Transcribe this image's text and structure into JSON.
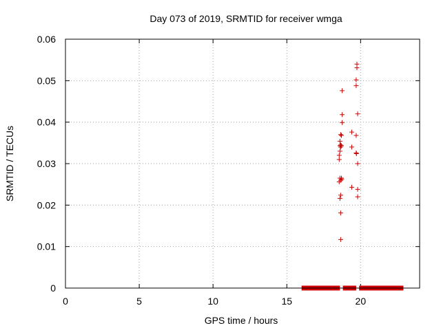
{
  "chart_data": {
    "type": "scatter",
    "title": "Day 073 of 2019, SRMTID for receiver wmga",
    "xlabel": "GPS time / hours",
    "ylabel": "SRMTID / TECUs",
    "xlim": [
      0,
      24
    ],
    "ylim": [
      0,
      0.06
    ],
    "x_ticks": [
      "0",
      "5",
      "10",
      "15",
      "20"
    ],
    "x_tick_values": [
      0,
      5,
      10,
      15,
      20
    ],
    "y_ticks": [
      "0",
      "0.01",
      "0.02",
      "0.03",
      "0.04",
      "0.05",
      "0.06"
    ],
    "y_tick_values": [
      0,
      0.01,
      0.02,
      0.03,
      0.04,
      0.05,
      0.06
    ],
    "grid": true,
    "marker": "plus",
    "color": "#cc0000",
    "baseline_segments": [
      [
        16.0,
        18.6
      ],
      [
        18.8,
        19.7
      ],
      [
        19.9,
        22.9
      ]
    ],
    "points": [
      [
        18.55,
        0.031
      ],
      [
        18.55,
        0.032
      ],
      [
        18.55,
        0.0256
      ],
      [
        18.6,
        0.0343
      ],
      [
        18.6,
        0.0354
      ],
      [
        18.6,
        0.033
      ],
      [
        18.6,
        0.0265
      ],
      [
        18.6,
        0.0216
      ],
      [
        18.65,
        0.0345
      ],
      [
        18.65,
        0.034
      ],
      [
        18.65,
        0.037
      ],
      [
        18.65,
        0.026
      ],
      [
        18.65,
        0.0224
      ],
      [
        18.65,
        0.0181
      ],
      [
        18.65,
        0.0117
      ],
      [
        18.7,
        0.0343
      ],
      [
        18.7,
        0.0368
      ],
      [
        18.7,
        0.0265
      ],
      [
        18.72,
        0.0262
      ],
      [
        18.75,
        0.0399
      ],
      [
        18.75,
        0.0418
      ],
      [
        18.75,
        0.0476
      ],
      [
        19.4,
        0.0376
      ],
      [
        19.4,
        0.034
      ],
      [
        19.4,
        0.0243
      ],
      [
        19.7,
        0.0502
      ],
      [
        19.7,
        0.0488
      ],
      [
        19.7,
        0.0326
      ],
      [
        19.7,
        0.0368
      ],
      [
        19.72,
        0.0324
      ],
      [
        19.75,
        0.054
      ],
      [
        19.75,
        0.0531
      ],
      [
        19.8,
        0.042
      ],
      [
        19.8,
        0.03
      ],
      [
        19.8,
        0.0238
      ],
      [
        19.8,
        0.022
      ]
    ]
  }
}
